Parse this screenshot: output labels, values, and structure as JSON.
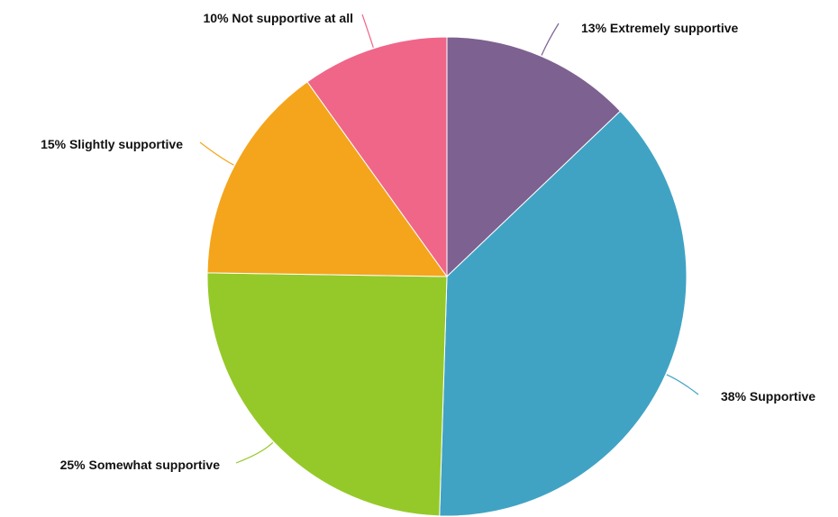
{
  "chart_data": {
    "type": "pie",
    "title": "",
    "slices": [
      {
        "label": "13% Extremely supportive",
        "name": "Extremely supportive",
        "value": 13,
        "color": "#7D6190"
      },
      {
        "label": "38% Supportive",
        "name": "Supportive",
        "value": 38,
        "color": "#40A3C4"
      },
      {
        "label": "25% Somewhat supportive",
        "name": "Somewhat supportive",
        "value": 25,
        "color": "#95C929"
      },
      {
        "label": "15% Slightly supportive",
        "name": "Slightly supportive",
        "value": 15,
        "color": "#F4A51C"
      },
      {
        "label": "10% Not supportive at all",
        "name": "Not supportive at all",
        "value": 10,
        "color": "#F06688"
      }
    ],
    "start_angle": "12 o'clock",
    "direction": "clockwise",
    "legend": "none (labels outside slices with leader lines)"
  }
}
